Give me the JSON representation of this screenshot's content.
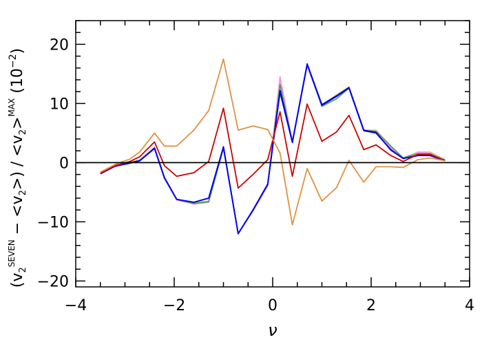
{
  "chart_data": {
    "type": "line",
    "xlabel": "ν",
    "ylabel": {
      "prefix": "(v",
      "sub1": "2",
      "sup1": "SEVEN",
      "mid": " − <v",
      "sub2": "2",
      "mid2": ">) / <v",
      "sub3": "2",
      "mid3": ">",
      "sup2": "MAX",
      "suffix": " (10",
      "sup3": "−2",
      "end": ")"
    },
    "xlim": [
      -4,
      4
    ],
    "ylim": [
      -21,
      24
    ],
    "xticks": [
      -4,
      -2,
      0,
      2,
      4
    ],
    "xtick_labels": [
      "−4",
      "−2",
      "0",
      "2",
      "4"
    ],
    "yticks": [
      -20,
      -10,
      0,
      10,
      20
    ],
    "ytick_labels": [
      "−20",
      "−10",
      "0",
      "10",
      "20"
    ],
    "x_minor_step": 0.5,
    "y_minor_step": 2,
    "reference_line_y": 0,
    "x": [
      -3.5,
      -3.2,
      -2.9,
      -2.7,
      -2.4,
      -2.2,
      -1.95,
      -1.6,
      -1.3,
      -1.0,
      -0.7,
      -0.4,
      -0.1,
      0.15,
      0.4,
      0.7,
      1.0,
      1.3,
      1.55,
      1.85,
      2.1,
      2.4,
      2.65,
      2.95,
      3.2,
      3.5
    ],
    "series": [
      {
        "color": "#e8c0a0",
        "values": [
          -1.8,
          -0.5,
          0,
          0.5,
          2.5,
          -2.5,
          -6.2,
          -6.8,
          -6.5,
          2.5,
          -12,
          -8,
          -3.8,
          14.2,
          3.5,
          16.5,
          9.7,
          11.5,
          12.8,
          5.5,
          5.5,
          2.7,
          0.8,
          1.8,
          1.8,
          0.5
        ]
      },
      {
        "color": "#ff88ff",
        "values": [
          -1.8,
          -0.6,
          0,
          0.4,
          2.4,
          -2.7,
          -6.3,
          -7.0,
          -6.7,
          2.4,
          -12,
          -8.2,
          -3.9,
          14.5,
          3.4,
          16.4,
          9.6,
          11.2,
          12.7,
          5.4,
          5.2,
          2.5,
          0.7,
          1.7,
          1.6,
          0.4
        ]
      },
      {
        "color": "#44aa44",
        "values": [
          -1.8,
          -0.6,
          0,
          0.4,
          2.4,
          -2.6,
          -6.2,
          -6.9,
          -6.6,
          2.5,
          -12,
          -8.1,
          -3.7,
          13.2,
          3.5,
          16.6,
          9.5,
          10.8,
          12.6,
          5.4,
          5.3,
          2.8,
          0.8,
          1.5,
          1.5,
          0.4
        ]
      },
      {
        "color": "#000080",
        "values": [
          -1.8,
          -0.6,
          0,
          0.3,
          2.5,
          -2.5,
          -6.2,
          -6.7,
          -6,
          2.7,
          -12,
          -8,
          -3.7,
          12.2,
          3.5,
          16.7,
          9.8,
          11.3,
          12.7,
          5.5,
          5.1,
          2.1,
          0.7,
          1.2,
          1.2,
          0.4
        ]
      },
      {
        "color": "#0000ff",
        "values": [
          -1.9,
          -0.6,
          -0.1,
          0.3,
          2.4,
          -2.5,
          -6.2,
          -6.7,
          -6,
          2.6,
          -12,
          -8,
          -3.6,
          11.9,
          3.4,
          16.6,
          9.7,
          11.2,
          12.6,
          5.4,
          5.0,
          2.2,
          0.7,
          1.2,
          1.2,
          0.3
        ]
      },
      {
        "color": "#cc0000",
        "values": [
          -1.8,
          -0.5,
          0.2,
          1,
          3.5,
          -0.5,
          -2.3,
          -1.7,
          0.2,
          9.2,
          -4.3,
          -2,
          0.5,
          8.6,
          -2.3,
          9.9,
          3.6,
          5.2,
          8,
          2.2,
          3.0,
          1.2,
          0.2,
          1.4,
          1.4,
          0.3
        ]
      },
      {
        "color": "#e09040",
        "values": [
          -1.6,
          -0.3,
          0.6,
          1.8,
          5,
          2.8,
          2.8,
          5.5,
          8.8,
          17.5,
          5.5,
          6.2,
          5.6,
          1.6,
          -10.5,
          -1,
          -6.5,
          -4.2,
          0.4,
          -3.3,
          -0.7,
          -0.7,
          -0.8,
          0.5,
          0.8,
          0.3
        ]
      }
    ]
  }
}
